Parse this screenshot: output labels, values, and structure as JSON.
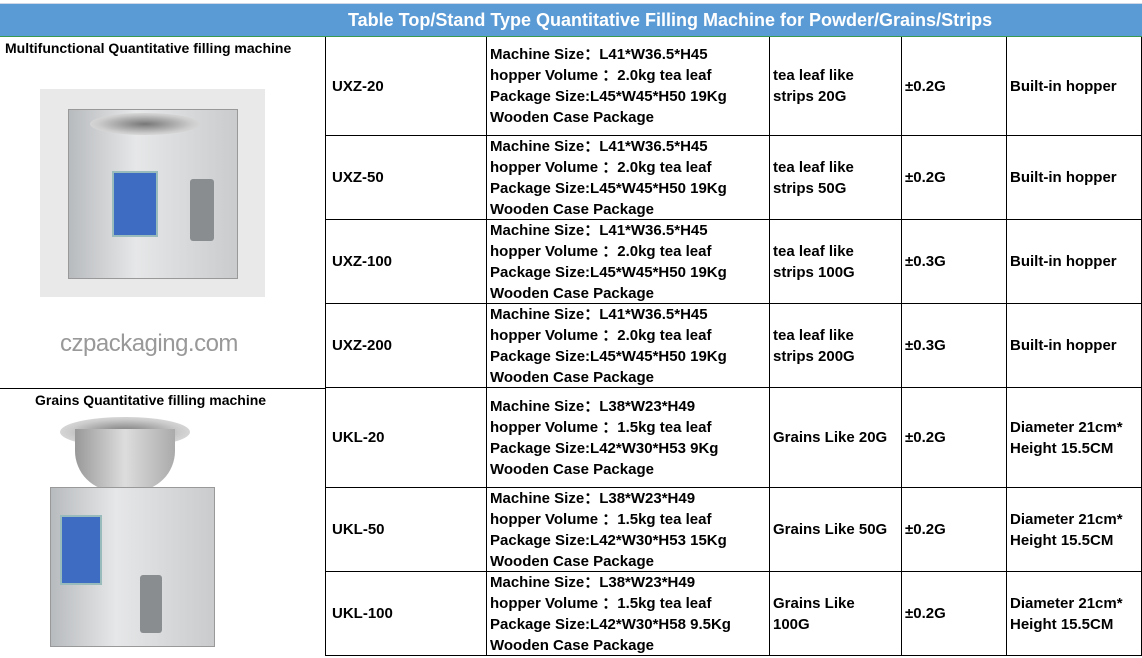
{
  "title": "Table Top/Stand Type Quantitative Filling Machine for Powder/Grains/Strips",
  "watermark": "czpackaging.com",
  "groups": [
    {
      "label": "Multifunctional Quantitative filling machine"
    },
    {
      "label": "Grains Quantitative filling machine"
    }
  ],
  "rows": [
    {
      "model": "UXZ-20",
      "spec": [
        "Machine Size：L41*W36.5*H45",
        "hopper Volume ：2.0kg tea leaf",
        "Package Size:L45*W45*H50 19Kg",
        "Wooden Case Package"
      ],
      "range": [
        "tea leaf like",
        "strips 20G"
      ],
      "accuracy": "±0.2G",
      "hopper": [
        "Built-in hopper"
      ]
    },
    {
      "model": "UXZ-50",
      "spec": [
        "Machine Size：L41*W36.5*H45",
        "hopper Volume ：2.0kg tea leaf",
        "Package Size:L45*W45*H50 19Kg",
        "Wooden Case Package"
      ],
      "range": [
        "tea leaf like",
        "strips 50G"
      ],
      "accuracy": "±0.2G",
      "hopper": [
        "Built-in hopper"
      ]
    },
    {
      "model": "UXZ-100",
      "spec": [
        "Machine Size：L41*W36.5*H45",
        "hopper Volume ：2.0kg tea leaf",
        "Package Size:L45*W45*H50 19Kg",
        "Wooden Case Package"
      ],
      "range": [
        "tea leaf like",
        "strips 100G"
      ],
      "accuracy": "±0.3G",
      "hopper": [
        "Built-in hopper"
      ]
    },
    {
      "model": "UXZ-200",
      "spec": [
        "Machine Size：L41*W36.5*H45",
        "hopper Volume ：2.0kg tea leaf",
        "Package Size:L45*W45*H50 19Kg",
        "Wooden Case Package"
      ],
      "range": [
        "tea leaf like",
        "strips 200G"
      ],
      "accuracy": "±0.3G",
      "hopper": [
        "Built-in hopper"
      ]
    },
    {
      "model": "UKL-20",
      "spec": [
        "Machine Size：L38*W23*H49",
        "hopper Volume ：1.5kg tea leaf",
        "Package Size:L42*W30*H53 9Kg",
        "Wooden Case Package"
      ],
      "range": [
        "Grains Like 20G"
      ],
      "accuracy": "±0.2G",
      "hopper": [
        "Diameter 21cm*",
        "Height 15.5CM"
      ]
    },
    {
      "model": "UKL-50",
      "spec": [
        "Machine Size：L38*W23*H49",
        "hopper Volume ：1.5kg tea leaf",
        "Package Size:L42*W30*H53 15Kg",
        "Wooden Case Package"
      ],
      "range": [
        "Grains Like 50G"
      ],
      "accuracy": "±0.2G",
      "hopper": [
        "Diameter 21cm*",
        "Height 15.5CM"
      ]
    },
    {
      "model": "UKL-100",
      "spec": [
        "Machine Size：L38*W23*H49",
        "hopper Volume ：1.5kg tea leaf",
        "Package Size:L42*W30*H58 9.5Kg",
        "Wooden Case Package"
      ],
      "range": [
        "Grains Like",
        "100G"
      ],
      "accuracy": "±0.2G",
      "hopper": [
        "Diameter 21cm*",
        "Height 15.5CM"
      ]
    }
  ]
}
